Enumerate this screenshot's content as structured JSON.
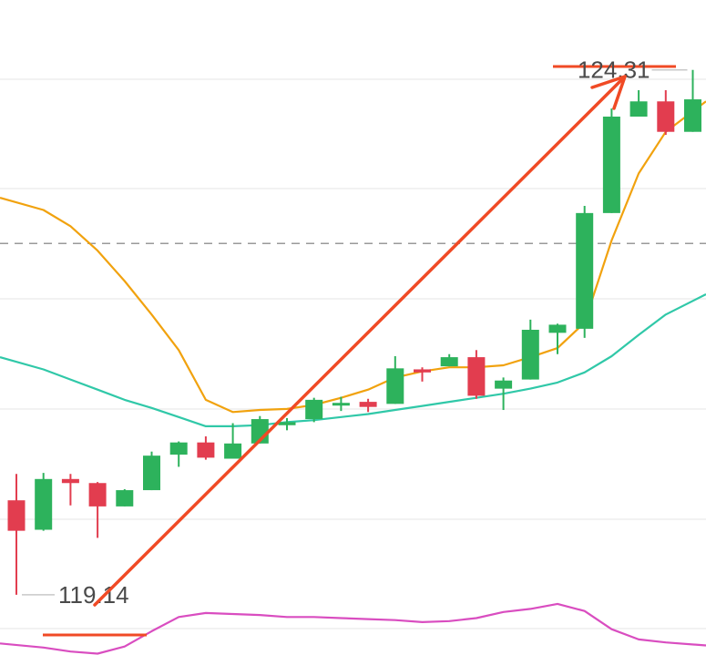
{
  "chart_data": {
    "type": "candlestick",
    "colors": {
      "up": "#2db25c",
      "down": "#e23d4f",
      "ma_orange": "#f1a20e",
      "ma_teal": "#30c8a8",
      "ma_magenta": "#d94dc0",
      "arrow": "#f04a25",
      "marker": "#f04a25"
    },
    "annotations": {
      "high_label": "124.31",
      "low_label": "119.14"
    },
    "ylim": [
      118.6,
      124.55
    ],
    "reference_level": 122.6,
    "candles": [
      {
        "o": 120.07,
        "c": 119.77,
        "h": 120.33,
        "l": 119.14,
        "dir": "down"
      },
      {
        "o": 119.78,
        "c": 120.28,
        "h": 120.34,
        "l": 119.77,
        "dir": "up"
      },
      {
        "o": 120.28,
        "c": 120.24,
        "h": 120.33,
        "l": 120.02,
        "dir": "down"
      },
      {
        "o": 120.24,
        "c": 120.01,
        "h": 120.25,
        "l": 119.7,
        "dir": "down"
      },
      {
        "o": 120.01,
        "c": 120.17,
        "h": 120.18,
        "l": 120.01,
        "dir": "up"
      },
      {
        "o": 120.17,
        "c": 120.51,
        "h": 120.55,
        "l": 120.17,
        "dir": "up"
      },
      {
        "o": 120.52,
        "c": 120.64,
        "h": 120.65,
        "l": 120.4,
        "dir": "up"
      },
      {
        "o": 120.64,
        "c": 120.49,
        "h": 120.7,
        "l": 120.47,
        "dir": "down"
      },
      {
        "o": 120.48,
        "c": 120.63,
        "h": 120.83,
        "l": 120.48,
        "dir": "up"
      },
      {
        "o": 120.63,
        "c": 120.87,
        "h": 120.9,
        "l": 120.63,
        "dir": "up"
      },
      {
        "o": 120.81,
        "c": 120.84,
        "h": 120.88,
        "l": 120.76,
        "dir": "up"
      },
      {
        "o": 120.87,
        "c": 121.06,
        "h": 121.08,
        "l": 120.84,
        "dir": "up"
      },
      {
        "o": 121.01,
        "c": 121.03,
        "h": 121.09,
        "l": 120.95,
        "dir": "up"
      },
      {
        "o": 121.04,
        "c": 120.99,
        "h": 121.07,
        "l": 120.94,
        "dir": "down"
      },
      {
        "o": 121.02,
        "c": 121.37,
        "h": 121.49,
        "l": 121.02,
        "dir": "up"
      },
      {
        "o": 121.36,
        "c": 121.33,
        "h": 121.38,
        "l": 121.24,
        "dir": "down"
      },
      {
        "o": 121.39,
        "c": 121.48,
        "h": 121.51,
        "l": 121.39,
        "dir": "up"
      },
      {
        "o": 121.48,
        "c": 121.1,
        "h": 121.55,
        "l": 121.07,
        "dir": "down"
      },
      {
        "o": 121.17,
        "c": 121.25,
        "h": 121.28,
        "l": 120.96,
        "dir": "up"
      },
      {
        "o": 121.26,
        "c": 121.75,
        "h": 121.85,
        "l": 121.26,
        "dir": "up"
      },
      {
        "o": 121.72,
        "c": 121.8,
        "h": 121.81,
        "l": 121.51,
        "dir": "up"
      },
      {
        "o": 121.76,
        "c": 122.9,
        "h": 122.97,
        "l": 121.67,
        "dir": "up"
      },
      {
        "o": 122.9,
        "c": 123.85,
        "h": 123.93,
        "l": 122.9,
        "dir": "up"
      },
      {
        "o": 123.85,
        "c": 124.0,
        "h": 124.11,
        "l": 123.85,
        "dir": "up"
      },
      {
        "o": 124.0,
        "c": 123.7,
        "h": 124.11,
        "l": 123.67,
        "dir": "down"
      },
      {
        "o": 123.7,
        "c": 124.02,
        "h": 124.31,
        "l": 123.7,
        "dir": "up"
      }
    ],
    "ma_orange": [
      123.05,
      122.93,
      122.77,
      122.53,
      122.23,
      121.9,
      121.55,
      121.06,
      120.94,
      120.96,
      120.97,
      121.01,
      121.08,
      121.16,
      121.28,
      121.34,
      121.38,
      121.38,
      121.4,
      121.48,
      121.57,
      121.82,
      122.63,
      123.29,
      123.7,
      124.0
    ],
    "ma_teal": [
      121.48,
      121.36,
      121.26,
      121.16,
      121.06,
      120.98,
      120.89,
      120.8,
      120.8,
      120.81,
      120.84,
      120.86,
      120.89,
      120.92,
      120.96,
      121.0,
      121.04,
      121.08,
      121.12,
      121.17,
      121.23,
      121.33,
      121.49,
      121.7,
      121.9,
      122.1
    ],
    "ma_magenta": [
      118.66,
      118.62,
      118.58,
      118.56,
      118.63,
      118.78,
      118.92,
      118.96,
      118.95,
      118.94,
      118.92,
      118.92,
      118.91,
      118.9,
      118.89,
      118.87,
      118.88,
      118.91,
      118.97,
      119.0,
      119.05,
      118.98,
      118.8,
      118.7,
      118.67,
      118.64
    ]
  }
}
